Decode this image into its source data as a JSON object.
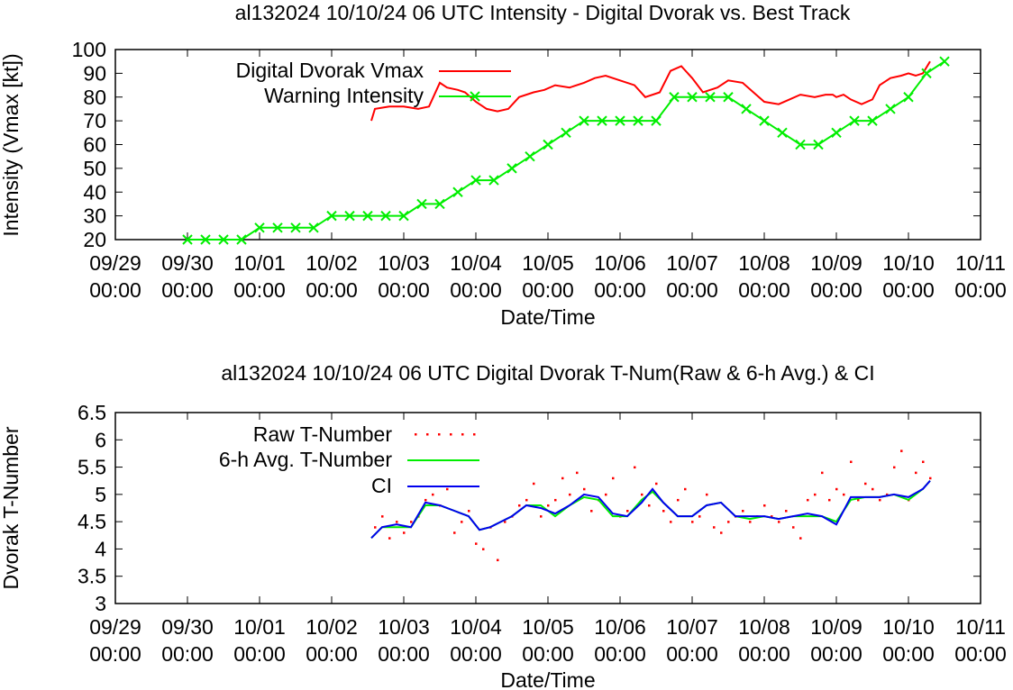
{
  "chart_data": [
    {
      "type": "line",
      "title": "al132024 10/10/24  06 UTC Intensity - Digital Dvorak vs. Best Track",
      "xlabel": "Date/Time",
      "ylabel": "Intensity (Vmax [kt])",
      "xlim": [
        "09/29 00:00",
        "10/11 00:00"
      ],
      "ylim": [
        20,
        100
      ],
      "yticks": [
        "20",
        "30",
        "40",
        "50",
        "60",
        "70",
        "80",
        "90",
        "100"
      ],
      "xticks": [
        {
          "d": "09/29",
          "t": "00:00"
        },
        {
          "d": "09/30",
          "t": "00:00"
        },
        {
          "d": "10/01",
          "t": "00:00"
        },
        {
          "d": "10/02",
          "t": "00:00"
        },
        {
          "d": "10/03",
          "t": "00:00"
        },
        {
          "d": "10/04",
          "t": "00:00"
        },
        {
          "d": "10/05",
          "t": "00:00"
        },
        {
          "d": "10/06",
          "t": "00:00"
        },
        {
          "d": "10/07",
          "t": "00:00"
        },
        {
          "d": "10/08",
          "t": "00:00"
        },
        {
          "d": "10/09",
          "t": "00:00"
        },
        {
          "d": "10/10",
          "t": "00:00"
        },
        {
          "d": "10/11",
          "t": "00:00"
        }
      ],
      "grid": false,
      "legend": "top-left",
      "series": [
        {
          "name": "Digital Dvorak Vmax",
          "color": "#ff0000",
          "x_days_from_0929": [
            3.55,
            3.6,
            3.8,
            4.0,
            4.2,
            4.35,
            4.5,
            4.6,
            4.75,
            4.85,
            5.0,
            5.15,
            5.3,
            5.45,
            5.6,
            5.8,
            5.95,
            6.1,
            6.3,
            6.5,
            6.65,
            6.8,
            7.0,
            7.2,
            7.35,
            7.55,
            7.7,
            7.85,
            8.0,
            8.15,
            8.35,
            8.5,
            8.7,
            8.85,
            9.0,
            9.2,
            9.35,
            9.5,
            9.7,
            9.85,
            9.95,
            10.0,
            10.1,
            10.2,
            10.35,
            10.5,
            10.6,
            10.75,
            10.9,
            11.0,
            11.1,
            11.2,
            11.3
          ],
          "values": [
            70,
            75,
            76,
            76,
            75,
            76,
            86,
            84,
            83,
            82,
            78,
            75,
            74,
            75,
            80,
            82,
            83,
            85,
            84,
            86,
            88,
            89,
            87,
            85,
            80,
            82,
            91,
            93,
            88,
            82,
            84,
            87,
            86,
            82,
            78,
            77,
            79,
            81,
            80,
            81,
            81,
            80,
            81,
            79,
            77,
            79,
            85,
            88,
            89,
            90,
            89,
            90,
            95
          ]
        },
        {
          "name": "Warning Intensity",
          "color": "#00ee00",
          "x_days_from_0929": [
            1.0,
            1.25,
            1.5,
            1.75,
            2.0,
            2.25,
            2.5,
            2.75,
            3.0,
            3.25,
            3.5,
            3.75,
            4.0,
            4.25,
            4.5,
            4.75,
            5.0,
            5.25,
            5.5,
            5.75,
            6.0,
            6.25,
            6.5,
            6.75,
            7.0,
            7.25,
            7.5,
            7.75,
            8.0,
            8.25,
            8.5,
            8.75,
            9.0,
            9.25,
            9.5,
            9.75,
            10.0,
            10.25,
            10.5,
            10.75,
            11.0,
            11.25,
            11.5
          ],
          "values": [
            20,
            20,
            20,
            20,
            25,
            25,
            25,
            25,
            30,
            30,
            30,
            30,
            30,
            35,
            35,
            40,
            45,
            45,
            50,
            55,
            60,
            65,
            70,
            70,
            70,
            70,
            70,
            80,
            80,
            80,
            80,
            75,
            70,
            65,
            60,
            60,
            65,
            70,
            70,
            75,
            80,
            90,
            95
          ]
        }
      ]
    },
    {
      "type": "line",
      "title": "al132024 10/10/24  06 UTC Digital Dvorak T-Num(Raw & 6-h Avg.) & CI",
      "xlabel": "Date/Time",
      "ylabel": "Dvorak T-Number",
      "xlim": [
        "09/29 00:00",
        "10/11 00:00"
      ],
      "ylim": [
        3,
        6.5
      ],
      "yticks": [
        "3",
        "3.5",
        "4",
        "4.5",
        "5",
        "5.5",
        "6",
        "6.5"
      ],
      "xticks": [
        {
          "d": "09/29",
          "t": "00:00"
        },
        {
          "d": "09/30",
          "t": "00:00"
        },
        {
          "d": "10/01",
          "t": "00:00"
        },
        {
          "d": "10/02",
          "t": "00:00"
        },
        {
          "d": "10/03",
          "t": "00:00"
        },
        {
          "d": "10/04",
          "t": "00:00"
        },
        {
          "d": "10/05",
          "t": "00:00"
        },
        {
          "d": "10/06",
          "t": "00:00"
        },
        {
          "d": "10/07",
          "t": "00:00"
        },
        {
          "d": "10/08",
          "t": "00:00"
        },
        {
          "d": "10/09",
          "t": "00:00"
        },
        {
          "d": "10/10",
          "t": "00:00"
        },
        {
          "d": "10/11",
          "t": "00:00"
        }
      ],
      "grid": false,
      "legend": "top-left",
      "series": [
        {
          "name": "Raw T-Number",
          "color": "#ff0000",
          "x_days_from_0929": [
            3.6,
            3.7,
            3.8,
            3.9,
            4.0,
            4.1,
            4.2,
            4.3,
            4.4,
            4.5,
            4.6,
            4.7,
            4.8,
            4.9,
            5.0,
            5.1,
            5.2,
            5.3,
            5.4,
            5.5,
            5.6,
            5.7,
            5.8,
            5.9,
            6.0,
            6.1,
            6.2,
            6.3,
            6.4,
            6.5,
            6.6,
            6.7,
            6.8,
            6.9,
            7.0,
            7.1,
            7.2,
            7.3,
            7.4,
            7.5,
            7.6,
            7.7,
            7.8,
            7.9,
            8.0,
            8.1,
            8.2,
            8.3,
            8.4,
            8.5,
            8.6,
            8.7,
            8.8,
            8.9,
            9.0,
            9.1,
            9.2,
            9.3,
            9.4,
            9.5,
            9.6,
            9.7,
            9.8,
            9.9,
            10.0,
            10.1,
            10.2,
            10.3,
            10.4,
            10.5,
            10.6,
            10.7,
            10.8,
            10.9,
            11.0,
            11.1,
            11.2,
            11.3
          ],
          "values": [
            4.4,
            4.6,
            4.2,
            4.5,
            4.3,
            4.5,
            4.6,
            4.9,
            5.0,
            4.8,
            5.1,
            4.3,
            4.5,
            4.7,
            4.1,
            4.0,
            4.4,
            3.8,
            4.5,
            4.6,
            4.8,
            4.9,
            5.2,
            4.6,
            4.8,
            4.9,
            5.3,
            5.0,
            5.4,
            5.1,
            4.7,
            4.9,
            5.0,
            5.3,
            4.6,
            4.7,
            5.5,
            5.0,
            4.8,
            5.2,
            4.7,
            4.5,
            4.9,
            5.1,
            4.5,
            4.6,
            5.0,
            4.4,
            4.3,
            4.5,
            4.6,
            4.7,
            4.5,
            4.6,
            4.8,
            4.6,
            4.5,
            4.7,
            4.4,
            4.2,
            4.9,
            5.0,
            5.4,
            4.9,
            5.1,
            5.0,
            5.6,
            4.9,
            5.2,
            5.1,
            4.9,
            5.0,
            5.5,
            5.8,
            4.9,
            5.4,
            5.6,
            5.3
          ]
        },
        {
          "name": "6-h Avg. T-Number",
          "color": "#00ee00",
          "x_days_from_0929": [
            3.55,
            3.7,
            3.9,
            4.1,
            4.3,
            4.5,
            4.7,
            4.9,
            5.05,
            5.2,
            5.35,
            5.5,
            5.7,
            5.9,
            6.1,
            6.3,
            6.5,
            6.7,
            6.9,
            7.1,
            7.3,
            7.45,
            7.6,
            7.8,
            8.0,
            8.2,
            8.4,
            8.6,
            8.8,
            9.0,
            9.2,
            9.4,
            9.6,
            9.8,
            10.0,
            10.2,
            10.4,
            10.6,
            10.8,
            11.0,
            11.2,
            11.3
          ],
          "values": [
            4.2,
            4.4,
            4.4,
            4.4,
            4.8,
            4.8,
            4.7,
            4.6,
            4.35,
            4.4,
            4.5,
            4.6,
            4.8,
            4.8,
            4.6,
            4.8,
            4.95,
            4.9,
            4.6,
            4.6,
            4.9,
            5.05,
            4.85,
            4.6,
            4.6,
            4.8,
            4.85,
            4.6,
            4.55,
            4.6,
            4.55,
            4.6,
            4.6,
            4.6,
            4.5,
            4.9,
            4.95,
            4.95,
            5.0,
            4.9,
            5.1,
            5.25
          ]
        },
        {
          "name": "CI",
          "color": "#0000ee",
          "x_days_from_0929": [
            3.55,
            3.7,
            3.9,
            4.1,
            4.3,
            4.5,
            4.7,
            4.9,
            5.05,
            5.2,
            5.35,
            5.5,
            5.7,
            5.9,
            6.1,
            6.3,
            6.5,
            6.7,
            6.9,
            7.1,
            7.3,
            7.45,
            7.6,
            7.8,
            8.0,
            8.2,
            8.4,
            8.6,
            8.8,
            9.0,
            9.2,
            9.4,
            9.6,
            9.8,
            10.0,
            10.2,
            10.4,
            10.6,
            10.8,
            11.0,
            11.2,
            11.3
          ],
          "values": [
            4.2,
            4.4,
            4.45,
            4.4,
            4.85,
            4.8,
            4.7,
            4.6,
            4.35,
            4.4,
            4.5,
            4.6,
            4.8,
            4.75,
            4.65,
            4.8,
            5.0,
            4.95,
            4.65,
            4.6,
            4.85,
            5.1,
            4.85,
            4.6,
            4.6,
            4.8,
            4.85,
            4.6,
            4.6,
            4.6,
            4.55,
            4.6,
            4.65,
            4.6,
            4.45,
            4.95,
            4.95,
            4.95,
            5.0,
            4.95,
            5.1,
            5.25
          ]
        }
      ]
    }
  ]
}
